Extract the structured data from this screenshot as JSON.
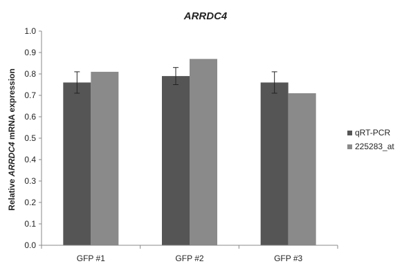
{
  "chart_data": {
    "type": "bar",
    "title": "ARRDC4",
    "ylabel": {
      "prefix": "Relative ",
      "italic": "ARRDC4",
      "suffix": " mRNA expression"
    },
    "xlabel": "",
    "categories": [
      "GFP #1",
      "GFP #2",
      "GFP #3"
    ],
    "ylim": [
      0,
      1.0
    ],
    "yticks": [
      0.0,
      0.1,
      0.2,
      0.3,
      0.4,
      0.5,
      0.6,
      0.7,
      0.8,
      0.9,
      1.0
    ],
    "ytick_labels": [
      "0.0",
      "0.1",
      "0.2",
      "0.3",
      "0.4",
      "0.5",
      "0.6",
      "0.7",
      "0.8",
      "0.9",
      "1.0"
    ],
    "grid": false,
    "legend_position": "right",
    "series": [
      {
        "name": "qRT-PCR",
        "color": "#555555",
        "values": [
          0.76,
          0.79,
          0.76
        ],
        "errors": [
          0.05,
          0.04,
          0.05
        ]
      },
      {
        "name": "225283_at",
        "color": "#8a8a8a",
        "values": [
          0.81,
          0.87,
          0.71
        ]
      }
    ]
  }
}
